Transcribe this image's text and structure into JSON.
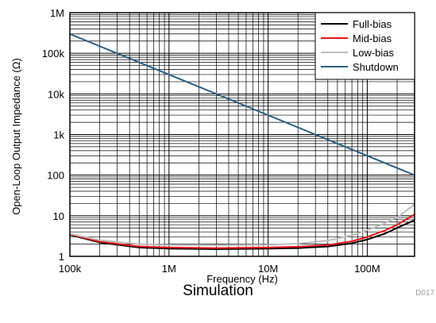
{
  "figure_id": "D017",
  "caption": "Simulation",
  "chart_data": {
    "type": "line",
    "xlabel": "Frequency (Hz)",
    "ylabel": "Open-Loop Output Impedance (Ω)",
    "x_scale": "log",
    "y_scale": "log",
    "xlim": [
      100000,
      300000000
    ],
    "ylim": [
      1,
      1000000
    ],
    "x_ticks": [
      {
        "value": 100000,
        "label": "100k"
      },
      {
        "value": 1000000,
        "label": "1M"
      },
      {
        "value": 10000000,
        "label": "10M"
      },
      {
        "value": 100000000,
        "label": "100M"
      }
    ],
    "y_ticks": [
      {
        "value": 1,
        "label": "1"
      },
      {
        "value": 10,
        "label": "10"
      },
      {
        "value": 100,
        "label": "100"
      },
      {
        "value": 1000,
        "label": "1k"
      },
      {
        "value": 10000,
        "label": "10k"
      },
      {
        "value": 100000,
        "label": "100k"
      },
      {
        "value": 1000000,
        "label": "1M"
      }
    ],
    "grid": true,
    "legend_position": "top-right",
    "series": [
      {
        "name": "Full-bias",
        "color": "#000000",
        "x": [
          100000,
          200000,
          500000,
          1000000,
          3000000,
          10000000,
          20000000,
          40000000,
          70000000,
          100000000,
          150000000,
          200000000,
          300000000
        ],
        "y": [
          3.4,
          2.2,
          1.65,
          1.55,
          1.5,
          1.55,
          1.6,
          1.75,
          2.1,
          2.6,
          3.6,
          5.0,
          7.8
        ]
      },
      {
        "name": "Mid-bias",
        "color": "#e8141c",
        "x": [
          100000,
          200000,
          500000,
          1000000,
          3000000,
          10000000,
          20000000,
          40000000,
          70000000,
          100000000,
          150000000,
          200000000,
          300000000
        ],
        "y": [
          3.5,
          2.3,
          1.75,
          1.65,
          1.6,
          1.65,
          1.72,
          1.9,
          2.35,
          3.0,
          4.3,
          6.0,
          10.8
        ]
      },
      {
        "name": "Low-bias",
        "color": "#bdbdbd",
        "x": [
          100000,
          200000,
          500000,
          1000000,
          3000000,
          10000000,
          20000000,
          40000000,
          70000000,
          100000000,
          150000000,
          200000000,
          300000000
        ],
        "y": [
          3.6,
          2.5,
          2.0,
          1.9,
          1.88,
          1.92,
          2.05,
          2.45,
          3.3,
          4.4,
          6.5,
          9.0,
          19.0
        ]
      },
      {
        "name": "Shutdown",
        "color": "#2e5f80",
        "x": [
          100000,
          300000000
        ],
        "y": [
          300000,
          100
        ]
      }
    ]
  }
}
